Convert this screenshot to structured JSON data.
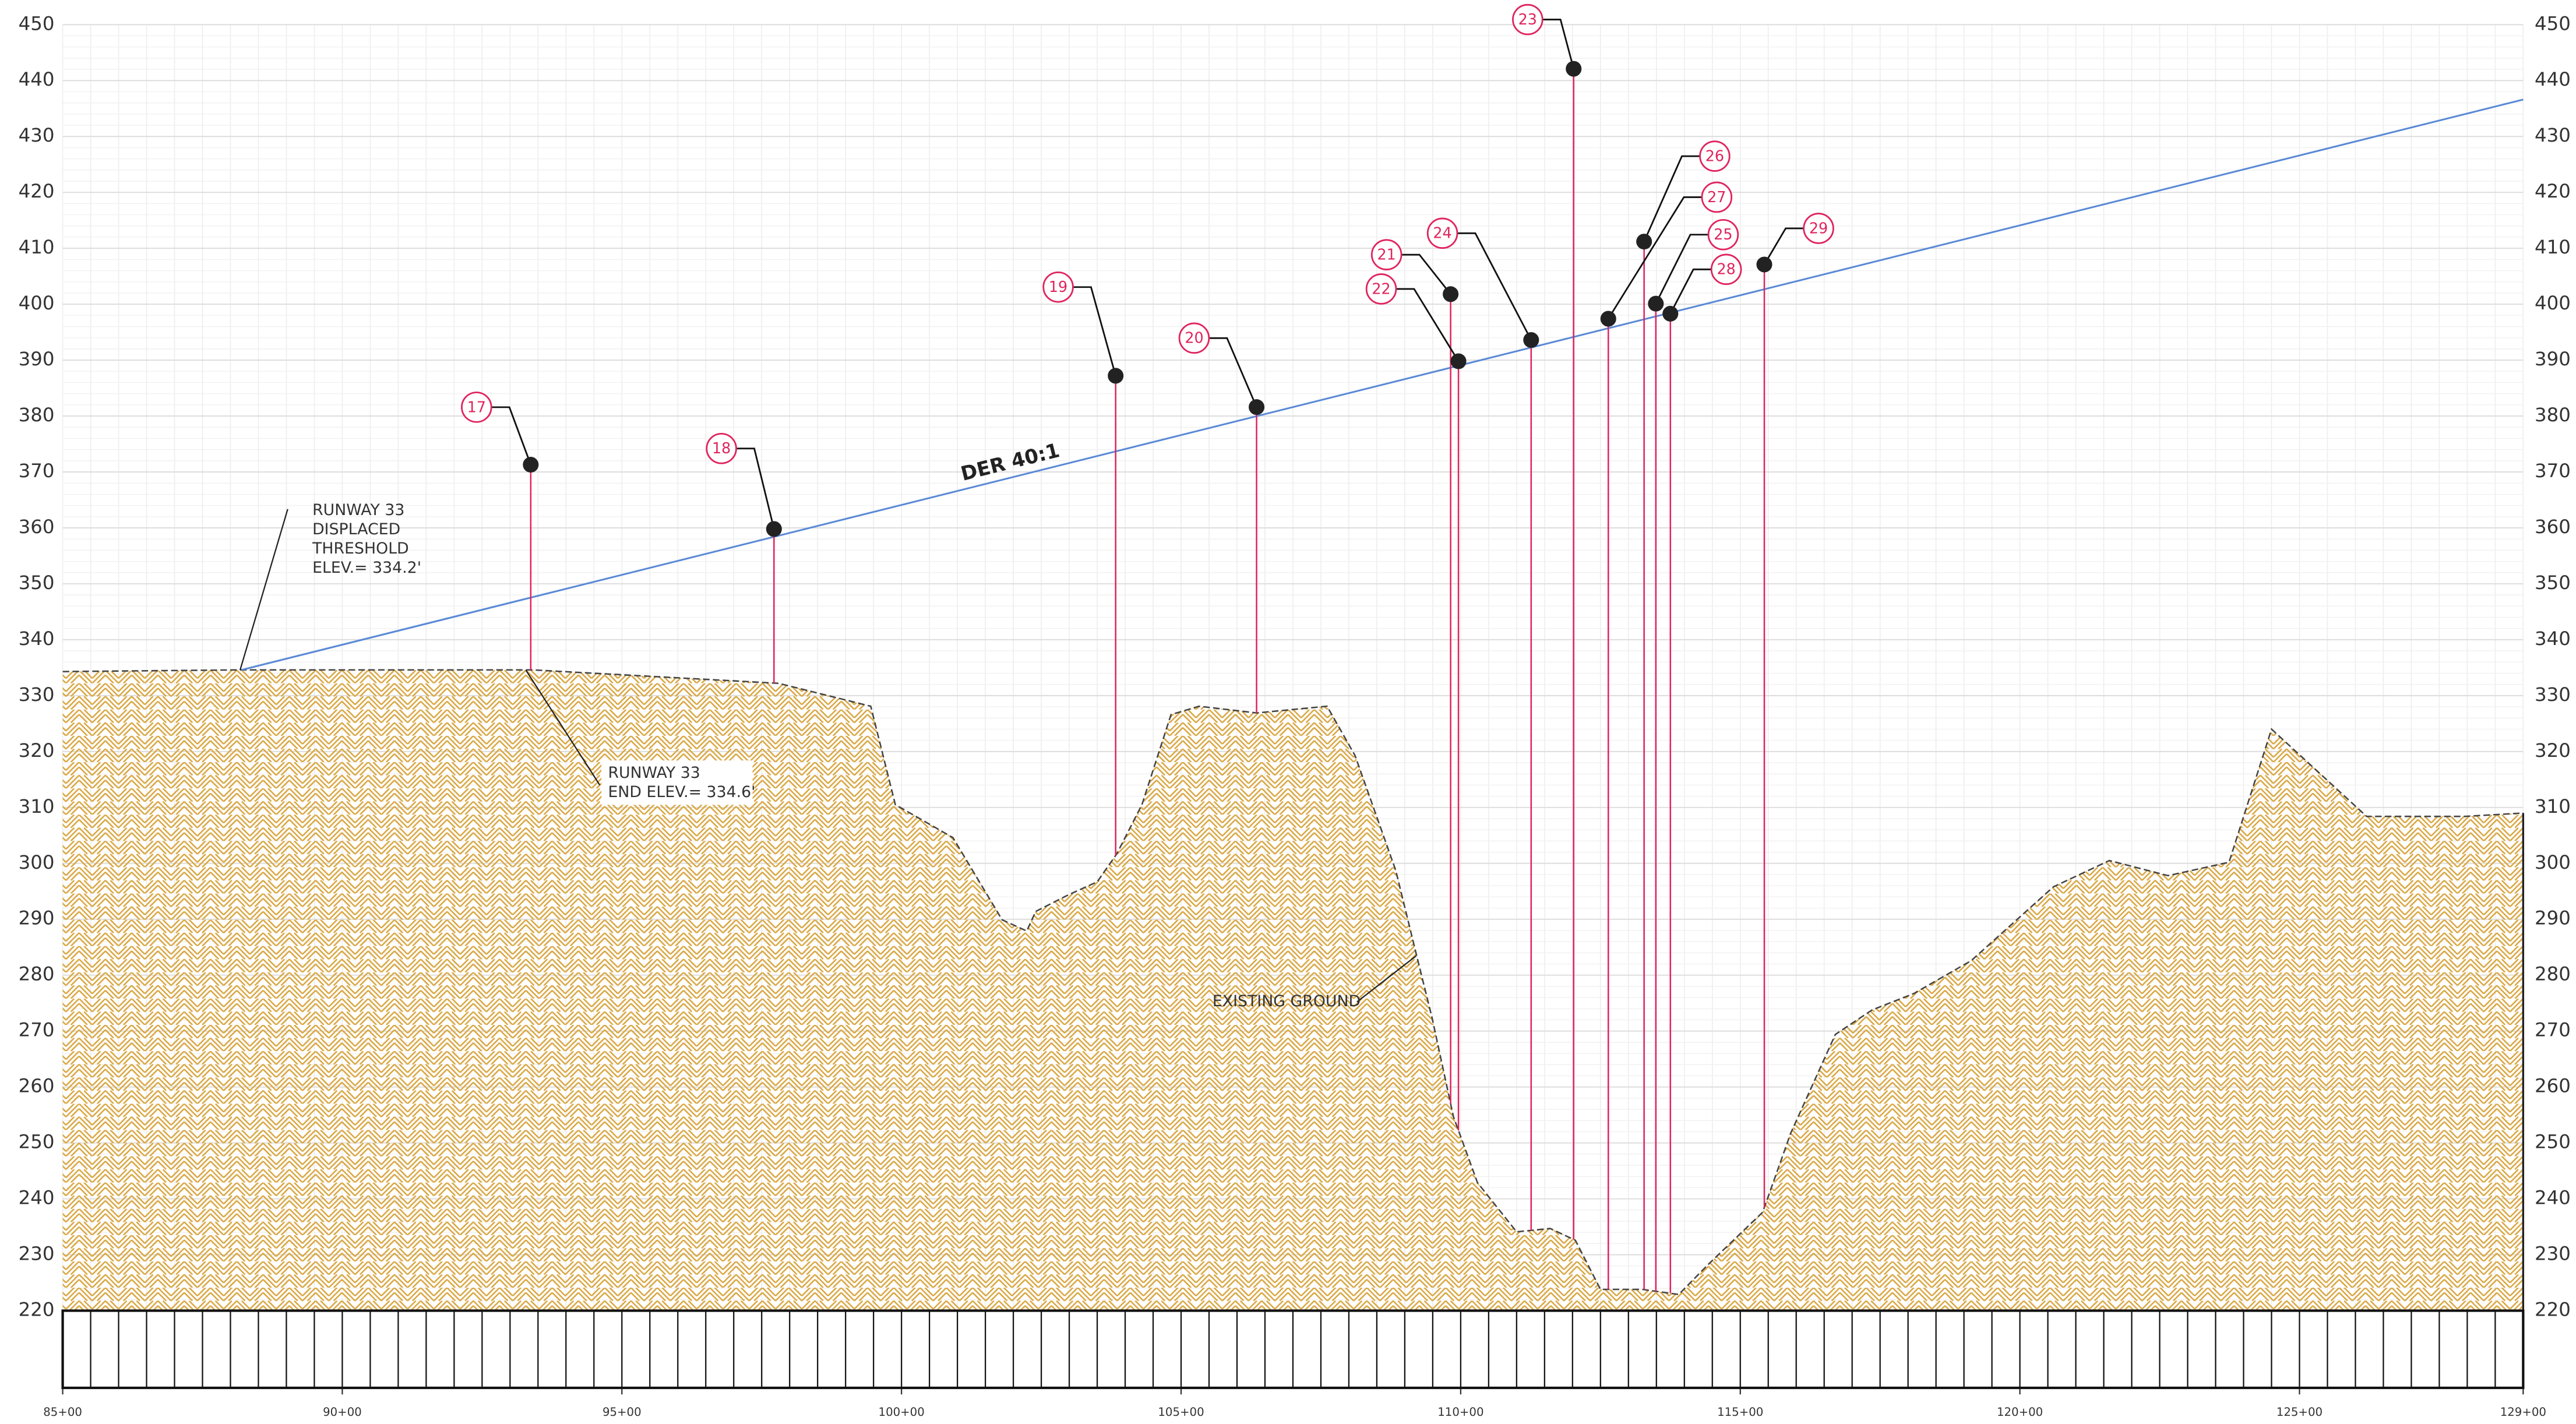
{
  "chart_data": {
    "type": "profile",
    "xlim": [
      85,
      129
    ],
    "ylim": [
      220,
      450
    ],
    "yticks": [
      220,
      230,
      240,
      250,
      260,
      270,
      280,
      290,
      300,
      310,
      320,
      330,
      340,
      350,
      360,
      370,
      380,
      390,
      400,
      410,
      420,
      430,
      440,
      450
    ],
    "xticks": [
      {
        "value": 85,
        "label": "85+00"
      },
      {
        "value": 90,
        "label": "90+00"
      },
      {
        "value": 95,
        "label": "95+00"
      },
      {
        "value": 100,
        "label": "100+00"
      },
      {
        "value": 105,
        "label": "105+00"
      },
      {
        "value": 110,
        "label": "110+00"
      },
      {
        "value": 115,
        "label": "115+00"
      },
      {
        "value": 120,
        "label": "120+00"
      },
      {
        "value": 125,
        "label": "125+00"
      },
      {
        "value": 129,
        "label": "129+00"
      }
    ],
    "grid": true,
    "ground": {
      "color": "#d9a640",
      "x": [
        85,
        88.2,
        93.4,
        97.8,
        99.45,
        99.89,
        100.92,
        101.8,
        102.24,
        102.4,
        102.97,
        103.5,
        103.85,
        104.3,
        104.82,
        105.32,
        106.35,
        107.61,
        108.11,
        108.84,
        109.2,
        109.49,
        109.87,
        110.3,
        111.0,
        111.6,
        112.05,
        112.5,
        113.25,
        113.9,
        114.42,
        115.4,
        115.9,
        116.7,
        117.36,
        118.1,
        119.13,
        120.6,
        121.6,
        122.65,
        123.74,
        124.5,
        126.2,
        127.96,
        129
      ],
      "y": [
        334.3,
        334.6,
        334.6,
        332.2,
        328.1,
        310.5,
        304.6,
        289.9,
        287.9,
        291.4,
        294.3,
        296.7,
        301.7,
        310.5,
        326.6,
        328.1,
        326.9,
        328.1,
        319.3,
        298.7,
        284,
        272.3,
        254.7,
        242.9,
        234.1,
        234.7,
        232.6,
        223.8,
        223.8,
        222.9,
        228.2,
        237.6,
        251.7,
        269.4,
        273.8,
        276.7,
        282.6,
        295.8,
        300.5,
        297.8,
        300.2,
        324,
        308.4,
        308.4,
        309
      ]
    },
    "surface": {
      "name": "DER 40:1",
      "color": "#5b8ad6",
      "x": [
        88.2,
        129
      ],
      "y": [
        334.6,
        436.6
      ]
    },
    "obstacle_color": "#e0245e",
    "obstacles": [
      {
        "label": "17",
        "x": 93.37,
        "y": 371.3
      },
      {
        "label": "18",
        "x": 97.72,
        "y": 359.8
      },
      {
        "label": "19",
        "x": 103.83,
        "y": 387.2
      },
      {
        "label": "20",
        "x": 106.35,
        "y": 381.6
      },
      {
        "label": "21",
        "x": 109.82,
        "y": 401.8
      },
      {
        "label": "22",
        "x": 109.96,
        "y": 389.8
      },
      {
        "label": "23",
        "x": 112.02,
        "y": 442.1
      },
      {
        "label": "24",
        "x": 111.26,
        "y": 393.6
      },
      {
        "label": "25",
        "x": 113.49,
        "y": 400.1
      },
      {
        "label": "26",
        "x": 113.28,
        "y": 411.2
      },
      {
        "label": "27",
        "x": 112.64,
        "y": 397.4
      },
      {
        "label": "28",
        "x": 113.75,
        "y": 398.3
      },
      {
        "label": "29",
        "x": 115.43,
        "y": 407.1
      }
    ],
    "annotations": [
      {
        "lines": [
          "RUNWAY 33",
          "DISPLACED",
          "THRESHOLD",
          "ELEV.= 334.2'"
        ]
      },
      {
        "lines": [
          "RUNWAY 33",
          "END ELEV.= 334.6'"
        ]
      },
      {
        "lines": [
          "EXISTING GROUND"
        ]
      }
    ]
  }
}
